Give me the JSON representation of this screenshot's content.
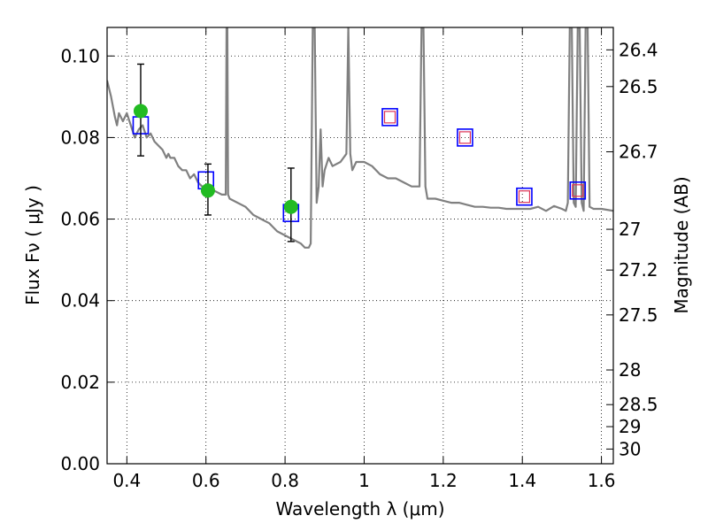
{
  "chart_data": {
    "type": "scatter",
    "xlabel": "Wavelength  λ (μm)",
    "ylabel": "Flux  Fν  ( μJy )",
    "ylabel_right": "Magnitude (AB)",
    "xlim": [
      0.35,
      1.63
    ],
    "ylim": [
      0.0,
      0.107
    ],
    "grid": true,
    "x_ticks": [
      0.4,
      0.6,
      0.8,
      1.0,
      1.2,
      1.4,
      1.6
    ],
    "x_tick_labels": [
      "0.4",
      "0.6",
      "0.8",
      "1",
      "1.2",
      "1.4",
      "1.6"
    ],
    "y_ticks": [
      0.0,
      0.02,
      0.04,
      0.06,
      0.08,
      0.1
    ],
    "y_tick_labels": [
      "0.00",
      "0.02",
      "0.04",
      "0.06",
      "0.08",
      "0.10"
    ],
    "right_ticks": [
      {
        "flux": 0.1015,
        "label": "26.4"
      },
      {
        "flux": 0.0925,
        "label": "26.5"
      },
      {
        "flux": 0.0765,
        "label": "26.7"
      },
      {
        "flux": 0.0575,
        "label": "27"
      },
      {
        "flux": 0.0475,
        "label": "27.2"
      },
      {
        "flux": 0.0365,
        "label": "27.5"
      },
      {
        "flux": 0.023,
        "label": "28"
      },
      {
        "flux": 0.0145,
        "label": "28.5"
      },
      {
        "flux": 0.0091,
        "label": "29"
      },
      {
        "flux": 0.0036,
        "label": "30"
      }
    ],
    "colors": {
      "template": "#808080",
      "observed": "#22bb22",
      "model_outer": "#0000ff",
      "model_inner": "#dd3355",
      "errorbar": "#000000"
    },
    "series": [
      {
        "kind": "line",
        "x": [
          0.35,
          0.36,
          0.37,
          0.375,
          0.38,
          0.39,
          0.4,
          0.41,
          0.42,
          0.43,
          0.44,
          0.45,
          0.46,
          0.47,
          0.48,
          0.49,
          0.5,
          0.505,
          0.51,
          0.52,
          0.53,
          0.54,
          0.55,
          0.56,
          0.57,
          0.58,
          0.59,
          0.6,
          0.62,
          0.64,
          0.65,
          0.652,
          0.654,
          0.656,
          0.66,
          0.68,
          0.7,
          0.72,
          0.74,
          0.76,
          0.78,
          0.8,
          0.82,
          0.84,
          0.85,
          0.86,
          0.865,
          0.87,
          0.875,
          0.88,
          0.885,
          0.89,
          0.895,
          0.9,
          0.91,
          0.92,
          0.94,
          0.955,
          0.96,
          0.965,
          0.97,
          0.98,
          1.0,
          1.02,
          1.04,
          1.06,
          1.08,
          1.1,
          1.12,
          1.14,
          1.145,
          1.15,
          1.155,
          1.16,
          1.18,
          1.2,
          1.22,
          1.24,
          1.26,
          1.28,
          1.3,
          1.32,
          1.34,
          1.36,
          1.38,
          1.4,
          1.42,
          1.44,
          1.46,
          1.48,
          1.5,
          1.51,
          1.515,
          1.52,
          1.525,
          1.53,
          1.535,
          1.54,
          1.545,
          1.55,
          1.555,
          1.56,
          1.565,
          1.57,
          1.58,
          1.6,
          1.63
        ],
        "y": [
          0.094,
          0.09,
          0.085,
          0.083,
          0.086,
          0.084,
          0.086,
          0.083,
          0.08,
          0.082,
          0.083,
          0.08,
          0.081,
          0.079,
          0.078,
          0.077,
          0.075,
          0.076,
          0.075,
          0.075,
          0.073,
          0.072,
          0.072,
          0.07,
          0.071,
          0.069,
          0.068,
          0.068,
          0.067,
          0.066,
          0.066,
          0.107,
          0.107,
          0.066,
          0.065,
          0.064,
          0.063,
          0.061,
          0.06,
          0.059,
          0.057,
          0.056,
          0.055,
          0.054,
          0.053,
          0.053,
          0.054,
          0.107,
          0.107,
          0.064,
          0.068,
          0.082,
          0.068,
          0.072,
          0.075,
          0.073,
          0.074,
          0.076,
          0.107,
          0.076,
          0.072,
          0.074,
          0.074,
          0.073,
          0.071,
          0.07,
          0.07,
          0.069,
          0.068,
          0.068,
          0.107,
          0.107,
          0.068,
          0.065,
          0.065,
          0.0645,
          0.064,
          0.064,
          0.0635,
          0.063,
          0.063,
          0.0628,
          0.0628,
          0.0625,
          0.0625,
          0.0625,
          0.0625,
          0.063,
          0.062,
          0.0632,
          0.0625,
          0.062,
          0.064,
          0.107,
          0.107,
          0.064,
          0.063,
          0.107,
          0.107,
          0.064,
          0.062,
          0.107,
          0.107,
          0.063,
          0.0625,
          0.0625,
          0.062
        ]
      },
      {
        "kind": "points",
        "x": [
          0.435,
          0.605,
          0.815
        ],
        "y": [
          0.0865,
          0.067,
          0.063
        ],
        "yerr_low": [
          0.0755,
          0.061,
          0.0545
        ],
        "yerr_high": [
          0.098,
          0.0735,
          0.0725
        ]
      },
      {
        "kind": "squares",
        "x": [
          0.435,
          0.6,
          0.815,
          1.065,
          1.255,
          1.405,
          1.54
        ],
        "y": [
          0.083,
          0.0695,
          0.0615,
          0.085,
          0.08,
          0.0655,
          0.067
        ],
        "inner": [
          false,
          false,
          false,
          true,
          true,
          true,
          true
        ]
      }
    ]
  }
}
